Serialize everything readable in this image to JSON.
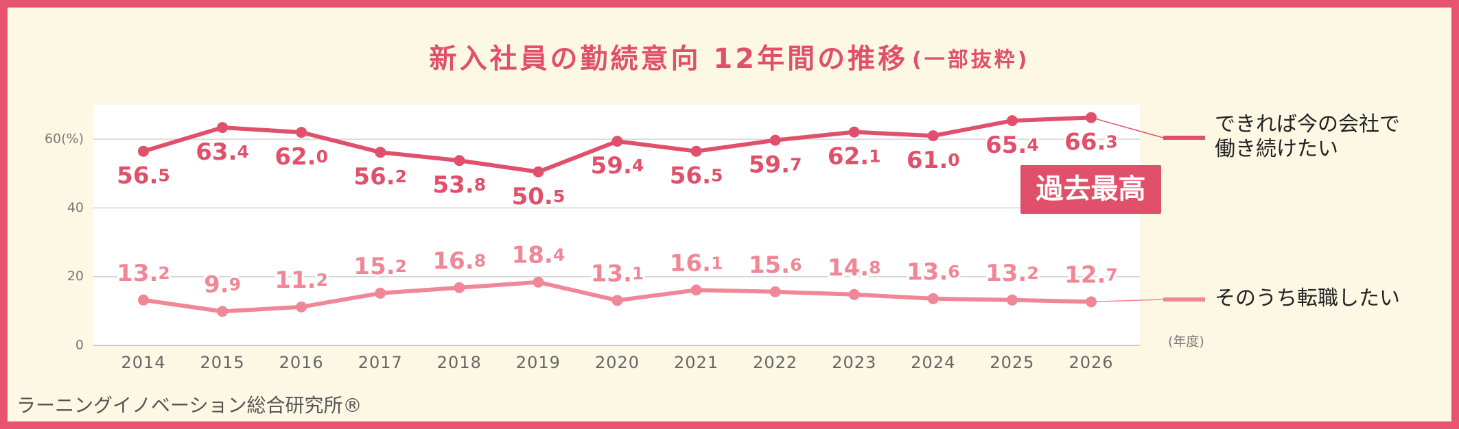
{
  "chart_data": {
    "type": "line",
    "title": "新入社員の勤続意向 12年間の推移",
    "subtitle": "(一部抜粋)",
    "categories": [
      "2014",
      "2015",
      "2016",
      "2017",
      "2018",
      "2019",
      "2020",
      "2021",
      "2022",
      "2023",
      "2024",
      "2025",
      "2026"
    ],
    "x_label": "(年度)",
    "series": [
      {
        "name": "できれば今の会社で働き続けたい",
        "color": "#e0506a",
        "values": [
          56.5,
          63.4,
          62.0,
          56.2,
          53.8,
          50.5,
          59.4,
          56.5,
          59.7,
          62.1,
          61.0,
          65.4,
          66.3
        ],
        "value_labels": [
          "56.5",
          "63.4",
          "62.0",
          "56.2",
          "53.8",
          "50.5",
          "59.4",
          "56.5",
          "59.7",
          "62.1",
          "61.0",
          "65.4",
          "66.3"
        ]
      },
      {
        "name": "そのうち転職したい",
        "color": "#f08796",
        "values": [
          13.2,
          9.9,
          11.2,
          15.2,
          16.8,
          18.4,
          13.1,
          16.1,
          15.6,
          14.8,
          13.6,
          13.2,
          12.7
        ],
        "value_labels": [
          "13.2",
          "9.9",
          "11.2",
          "15.2",
          "16.8",
          "18.4",
          "13.1",
          "16.1",
          "15.6",
          "14.8",
          "13.6",
          "13.2",
          "12.7"
        ]
      }
    ],
    "ylim": [
      0,
      70
    ],
    "yticks": [
      0,
      20,
      40,
      {
        "value": 60,
        "label": "60(%)"
      }
    ],
    "grid": true,
    "annotation": "過去最高",
    "source": "ラーニングイノベーション総合研究所®"
  }
}
